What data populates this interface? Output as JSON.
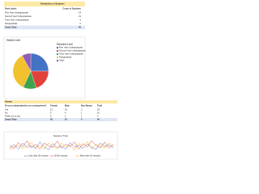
{
  "table1": {
    "title": "Distribution of Students",
    "header": [
      "Row Labels",
      "Count of Students"
    ],
    "rows": [
      [
        "First Year Undergraduate",
        "14"
      ],
      [
        "Second Year Undergraduate",
        "11"
      ],
      [
        "Third Year Undergraduate",
        "9"
      ],
      [
        "Postgraduate",
        "6"
      ]
    ],
    "total": [
      "Grand Total",
      "40"
    ]
  },
  "pie_chart": {
    "type": "pie",
    "title": "Student Level",
    "legend_title": "Education Level",
    "categories": [
      "First Year Undergraduate",
      "Second Year Undergraduate",
      "Third Year Undergraduate",
      "Postgraduate",
      "Other"
    ],
    "values": [
      25,
      20,
      12,
      35,
      8
    ],
    "colors": [
      "#4472c4",
      "#e0413b",
      "#3fa34d",
      "#f2c12e",
      "#8e5bb5"
    ]
  },
  "table2": {
    "title": "Gender",
    "header": [
      "Do you independently use a smartphone?",
      "Female",
      "Male",
      "Non-Binary",
      "Total"
    ],
    "rows": [
      [
        "Yes",
        "12",
        "10",
        "2",
        "24"
      ],
      [
        "No",
        "5",
        "4",
        "1",
        "10"
      ],
      [
        "Prefer not to say",
        "3",
        "2",
        "1",
        "6"
      ]
    ],
    "total": [
      "Grand Total",
      "20",
      "16",
      "4",
      "40"
    ]
  },
  "line_chart": {
    "type": "line",
    "title": "Session Time",
    "x": [
      1,
      2,
      3,
      4,
      5,
      6,
      7,
      8,
      9,
      10,
      11,
      12,
      13,
      14,
      15,
      16,
      17,
      18,
      19,
      20,
      21,
      22,
      23,
      24,
      25
    ],
    "xlim": [
      1,
      25
    ],
    "ylim": [
      0,
      60
    ],
    "series": [
      {
        "name": "Less than 30 minutes",
        "color": "#4472c4",
        "values": [
          20,
          35,
          15,
          40,
          22,
          30,
          18,
          45,
          25,
          12,
          38,
          20,
          28,
          15,
          42,
          24,
          30,
          18,
          36,
          22,
          14,
          40,
          26,
          32,
          20
        ]
      },
      {
        "name": "30-60 minutes",
        "color": "#e0413b",
        "values": [
          30,
          18,
          42,
          25,
          50,
          20,
          35,
          15,
          40,
          28,
          22,
          48,
          18,
          36,
          25,
          45,
          15,
          38,
          24,
          50,
          30,
          20,
          44,
          18,
          35
        ]
      },
      {
        "name": "More than 60 minutes",
        "color": "#f4a200",
        "values": [
          12,
          25,
          30,
          18,
          28,
          42,
          22,
          30,
          15,
          40,
          26,
          18,
          40,
          24,
          32,
          12,
          38,
          28,
          45,
          16,
          36,
          28,
          20,
          40,
          26
        ]
      }
    ]
  }
}
